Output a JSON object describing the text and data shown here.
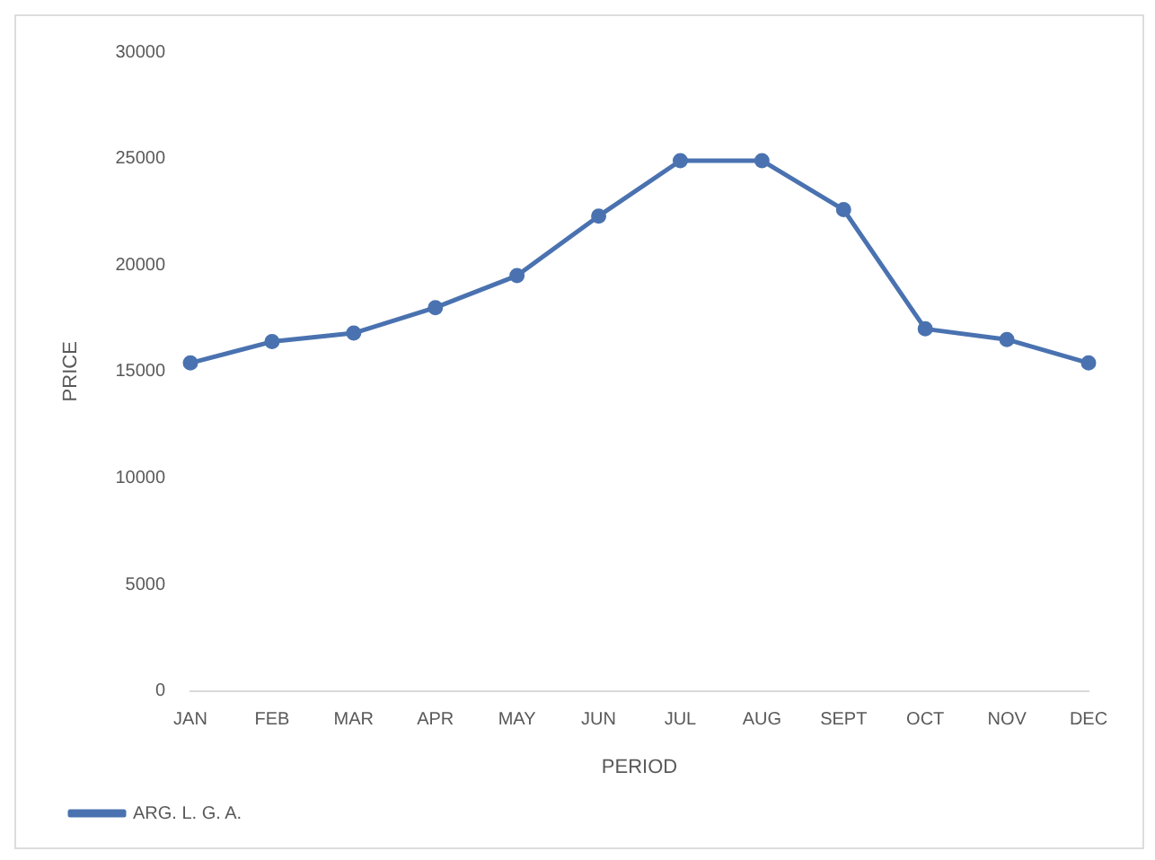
{
  "chart_data": {
    "type": "line",
    "xlabel": "PERIOD",
    "ylabel": "PRICE",
    "categories": [
      "JAN",
      "FEB",
      "MAR",
      "APR",
      "MAY",
      "JUN",
      "JUL",
      "AUG",
      "SEPT",
      "OCT",
      "NOV",
      "DEC"
    ],
    "series": [
      {
        "name": "ARG. L. G. A.",
        "color": "#4a72b0",
        "values": [
          15400,
          16400,
          16800,
          18000,
          19500,
          22300,
          24900,
          24900,
          22600,
          17000,
          16500,
          15400
        ]
      }
    ],
    "ylim": [
      0,
      30000
    ],
    "yticks": [
      0,
      5000,
      10000,
      15000,
      20000,
      25000,
      30000
    ],
    "grid": false,
    "legend": "bottom left",
    "marker": "circle",
    "line_style": "solid"
  }
}
